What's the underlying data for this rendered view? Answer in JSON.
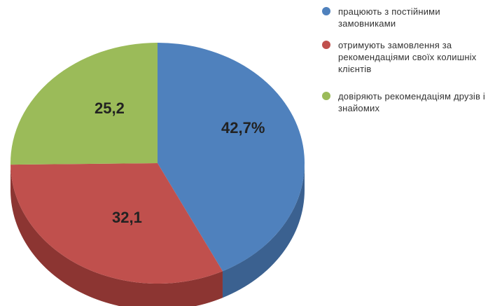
{
  "chart_data": {
    "type": "pie",
    "style": "3d",
    "slices": [
      {
        "label": "працюють з постійними замовниками",
        "value": 42.7,
        "display": "42,7%",
        "color": "#4f81bd",
        "side_color": "#3b6190"
      },
      {
        "label": "отримують замовлення за рекомендаціями своїх колишніх клієнтів",
        "value": 32.1,
        "display": "32,1",
        "color": "#c0504d",
        "side_color": "#8c3532"
      },
      {
        "label": "довіряють рекомендаціям друзів і знайомих",
        "value": 25.2,
        "display": "25,2",
        "color": "#9bbb59",
        "side_color": "#728c3f"
      }
    ],
    "legend_position": "right"
  },
  "legend": {
    "items": [
      {
        "label": "працюють з постійними замовниками",
        "color": "#4f81bd"
      },
      {
        "label": "отримують замовлення за рекомендаціями своїх колишніх клієнтів",
        "color": "#c0504d"
      },
      {
        "label": "довіряють рекомендаціям друзів і знайомих",
        "color": "#9bbb59"
      }
    ]
  }
}
